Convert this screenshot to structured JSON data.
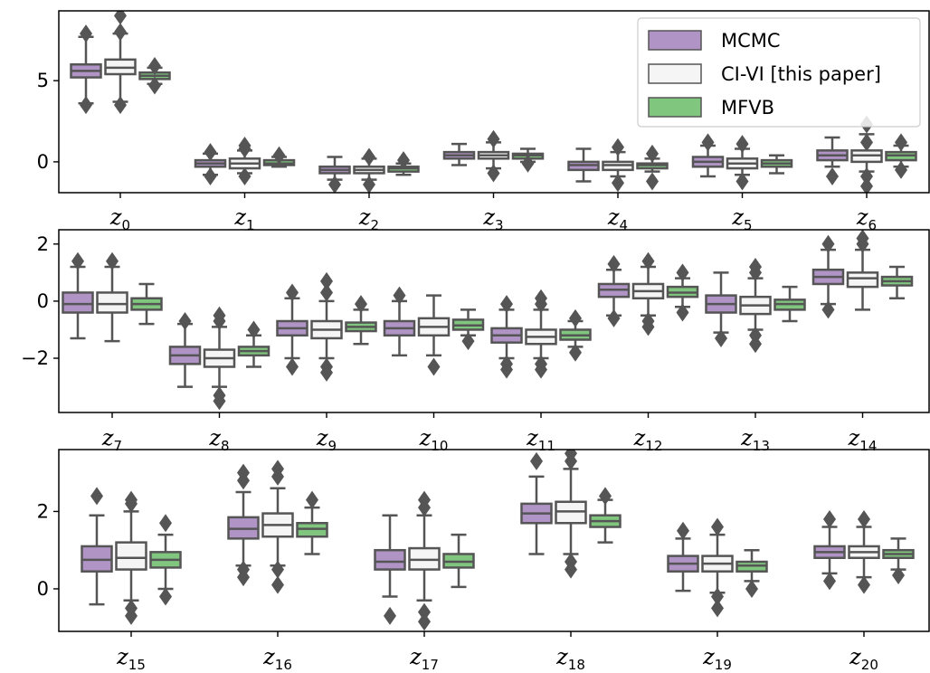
{
  "chart_data": {
    "type": "box",
    "legend": {
      "placement": "top-right",
      "entries": [
        {
          "name": "MCMC",
          "color": "#b194c6"
        },
        {
          "name": "CI-VI [this paper]",
          "color": "#f5f5f5"
        },
        {
          "name": "MFVB",
          "color": "#80c67f"
        }
      ]
    },
    "style": {
      "box_edge": "#555555",
      "outlier_marker": "diamond"
    },
    "panels": [
      {
        "ylim": [
          -1.9,
          9.3
        ],
        "yticks": [
          0,
          5
        ],
        "ytick_labels": [
          "0",
          "5"
        ],
        "categories": [
          {
            "base": "z",
            "sub": "0",
            "boxes": [
              {
                "lo": 3.6,
                "q1": 5.2,
                "med": 5.6,
                "q3": 6.0,
                "hi": 7.7,
                "outliers": [
                  3.5,
                  7.9
                ]
              },
              {
                "lo": 3.7,
                "q1": 5.4,
                "med": 5.8,
                "q3": 6.3,
                "hi": 7.9,
                "outliers": [
                  3.5,
                  8.0,
                  9.0
                ]
              },
              {
                "lo": 4.8,
                "q1": 5.1,
                "med": 5.3,
                "q3": 5.5,
                "hi": 5.8,
                "outliers": [
                  4.7,
                  5.9
                ]
              }
            ]
          },
          {
            "base": "z",
            "sub": "1",
            "boxes": [
              {
                "lo": -0.8,
                "q1": -0.3,
                "med": -0.1,
                "q3": 0.1,
                "hi": 0.5,
                "outliers": [
                  -0.9,
                  0.6
                ]
              },
              {
                "lo": -0.7,
                "q1": -0.4,
                "med": -0.1,
                "q3": 0.2,
                "hi": 0.7,
                "outliers": [
                  -0.9,
                  0.8,
                  1.0
                ]
              },
              {
                "lo": -0.3,
                "q1": -0.2,
                "med": -0.1,
                "q3": 0.1,
                "hi": 0.3,
                "outliers": [
                  0.4
                ]
              }
            ]
          },
          {
            "base": "z",
            "sub": "2",
            "boxes": [
              {
                "lo": -1.1,
                "q1": -0.7,
                "med": -0.5,
                "q3": -0.3,
                "hi": 0.3,
                "outliers": [
                  -1.4
                ]
              },
              {
                "lo": -1.1,
                "q1": -0.7,
                "med": -0.5,
                "q3": -0.3,
                "hi": 0.2,
                "outliers": [
                  -1.4,
                  0.3
                ]
              },
              {
                "lo": -0.8,
                "q1": -0.6,
                "med": -0.4,
                "q3": -0.3,
                "hi": -0.1,
                "outliers": [
                  0.1
                ]
              }
            ]
          },
          {
            "base": "z",
            "sub": "3",
            "boxes": [
              {
                "lo": -0.2,
                "q1": 0.2,
                "med": 0.4,
                "q3": 0.6,
                "hi": 1.1,
                "outliers": []
              },
              {
                "lo": -0.4,
                "q1": 0.2,
                "med": 0.4,
                "q3": 0.6,
                "hi": 1.2,
                "outliers": [
                  -0.7,
                  1.4
                ]
              },
              {
                "lo": 0.0,
                "q1": 0.2,
                "med": 0.4,
                "q3": 0.5,
                "hi": 0.8,
                "outliers": [
                  -0.1
                ]
              }
            ]
          },
          {
            "base": "z",
            "sub": "4",
            "boxes": [
              {
                "lo": -1.2,
                "q1": -0.5,
                "med": -0.2,
                "q3": 0.0,
                "hi": 0.8,
                "outliers": []
              },
              {
                "lo": -0.9,
                "q1": -0.5,
                "med": -0.2,
                "q3": 0.0,
                "hi": 0.6,
                "outliers": [
                  -1.3,
                  0.9
                ]
              },
              {
                "lo": -0.6,
                "q1": -0.4,
                "med": -0.2,
                "q3": -0.1,
                "hi": 0.2,
                "outliers": [
                  -1.2,
                  0.5
                ]
              }
            ]
          },
          {
            "base": "z",
            "sub": "5",
            "boxes": [
              {
                "lo": -0.9,
                "q1": -0.3,
                "med": 0.0,
                "q3": 0.3,
                "hi": 1.0,
                "outliers": [
                  1.2
                ]
              },
              {
                "lo": -0.8,
                "q1": -0.4,
                "med": -0.1,
                "q3": 0.2,
                "hi": 0.8,
                "outliers": [
                  -1.2,
                  1.1
                ]
              },
              {
                "lo": -0.7,
                "q1": -0.3,
                "med": -0.1,
                "q3": 0.1,
                "hi": 0.4,
                "outliers": []
              }
            ]
          },
          {
            "base": "z",
            "sub": "6",
            "boxes": [
              {
                "lo": -0.3,
                "q1": 0.1,
                "med": 0.4,
                "q3": 0.7,
                "hi": 1.5,
                "outliers": [
                  -0.9
                ]
              },
              {
                "lo": -0.6,
                "q1": 0.0,
                "med": 0.4,
                "q3": 0.7,
                "hi": 1.7,
                "outliers": [
                  -1.5,
                  -0.9,
                  1.2,
                  2.3
                ]
              },
              {
                "lo": -0.3,
                "q1": 0.1,
                "med": 0.4,
                "q3": 0.6,
                "hi": 1.0,
                "outliers": [
                  -0.5,
                  1.2
                ]
              }
            ]
          }
        ]
      },
      {
        "ylim": [
          -3.9,
          2.5
        ],
        "yticks": [
          -2,
          0,
          2
        ],
        "ytick_labels": [
          "−2",
          "0",
          "2"
        ],
        "categories": [
          {
            "base": "z",
            "sub": "7",
            "boxes": [
              {
                "lo": -1.3,
                "q1": -0.4,
                "med": -0.1,
                "q3": 0.3,
                "hi": 1.2,
                "outliers": [
                  1.4
                ]
              },
              {
                "lo": -1.4,
                "q1": -0.4,
                "med": -0.1,
                "q3": 0.3,
                "hi": 1.2,
                "outliers": [
                  1.4
                ]
              },
              {
                "lo": -0.8,
                "q1": -0.3,
                "med": -0.1,
                "q3": 0.1,
                "hi": 0.6,
                "outliers": []
              }
            ]
          },
          {
            "base": "z",
            "sub": "8",
            "boxes": [
              {
                "lo": -3.0,
                "q1": -2.2,
                "med": -1.9,
                "q3": -1.6,
                "hi": -0.8,
                "outliers": [
                  -0.7
                ]
              },
              {
                "lo": -3.0,
                "q1": -2.3,
                "med": -2.0,
                "q3": -1.7,
                "hi": -0.9,
                "outliers": [
                  -3.5,
                  -3.3,
                  -0.7,
                  -0.5
                ]
              },
              {
                "lo": -2.3,
                "q1": -1.9,
                "med": -1.75,
                "q3": -1.6,
                "hi": -1.2,
                "outliers": [
                  -1.0
                ]
              }
            ]
          },
          {
            "base": "z",
            "sub": "9",
            "boxes": [
              {
                "lo": -2.0,
                "q1": -1.2,
                "med": -0.95,
                "q3": -0.7,
                "hi": 0.1,
                "outliers": [
                  -2.3,
                  0.3
                ]
              },
              {
                "lo": -2.0,
                "q1": -1.3,
                "med": -1.0,
                "q3": -0.7,
                "hi": 0.0,
                "outliers": [
                  -2.5,
                  -2.3,
                  0.3,
                  0.7
                ]
              },
              {
                "lo": -1.5,
                "q1": -1.05,
                "med": -0.9,
                "q3": -0.75,
                "hi": -0.3,
                "outliers": [
                  -0.1
                ]
              }
            ]
          },
          {
            "base": "z",
            "sub": "10",
            "boxes": [
              {
                "lo": -1.9,
                "q1": -1.2,
                "med": -0.95,
                "q3": -0.7,
                "hi": 0.0,
                "outliers": [
                  0.2
                ]
              },
              {
                "lo": -1.9,
                "q1": -1.2,
                "med": -0.9,
                "q3": -0.6,
                "hi": 0.2,
                "outliers": [
                  -2.3
                ]
              },
              {
                "lo": -1.2,
                "q1": -1.0,
                "med": -0.85,
                "q3": -0.65,
                "hi": -0.3,
                "outliers": [
                  -1.4
                ]
              }
            ]
          },
          {
            "base": "z",
            "sub": "11",
            "boxes": [
              {
                "lo": -2.0,
                "q1": -1.45,
                "med": -1.2,
                "q3": -0.95,
                "hi": -0.3,
                "outliers": [
                  -2.4,
                  -2.2,
                  -0.1
                ]
              },
              {
                "lo": -2.0,
                "q1": -1.5,
                "med": -1.25,
                "q3": -1.0,
                "hi": -0.3,
                "outliers": [
                  -2.4,
                  -2.2,
                  -0.1,
                  0.1
                ]
              },
              {
                "lo": -1.6,
                "q1": -1.35,
                "med": -1.2,
                "q3": -1.0,
                "hi": -0.7,
                "outliers": [
                  -1.8,
                  -0.6
                ]
              }
            ]
          },
          {
            "base": "z",
            "sub": "12",
            "boxes": [
              {
                "lo": -0.5,
                "q1": 0.15,
                "med": 0.4,
                "q3": 0.6,
                "hi": 1.1,
                "outliers": [
                  -0.6,
                  1.3
                ]
              },
              {
                "lo": -0.5,
                "q1": 0.1,
                "med": 0.35,
                "q3": 0.6,
                "hi": 1.2,
                "outliers": [
                  -0.9,
                  -0.7,
                  1.4
                ]
              },
              {
                "lo": -0.2,
                "q1": 0.15,
                "med": 0.3,
                "q3": 0.5,
                "hi": 0.8,
                "outliers": [
                  -0.4,
                  1.0
                ]
              }
            ]
          },
          {
            "base": "z",
            "sub": "13",
            "boxes": [
              {
                "lo": -1.1,
                "q1": -0.4,
                "med": -0.1,
                "q3": 0.2,
                "hi": 1.0,
                "outliers": [
                  -1.3
                ]
              },
              {
                "lo": -1.0,
                "q1": -0.45,
                "med": -0.15,
                "q3": 0.15,
                "hi": 0.8,
                "outliers": [
                  -1.5,
                  -1.2,
                  1.0,
                  1.2
                ]
              },
              {
                "lo": -0.7,
                "q1": -0.3,
                "med": -0.1,
                "q3": 0.05,
                "hi": 0.5,
                "outliers": []
              }
            ]
          },
          {
            "base": "z",
            "sub": "14",
            "boxes": [
              {
                "lo": -0.1,
                "q1": 0.6,
                "med": 0.85,
                "q3": 1.1,
                "hi": 1.8,
                "outliers": [
                  -0.3,
                  2.0
                ]
              },
              {
                "lo": -0.3,
                "q1": 0.5,
                "med": 0.8,
                "q3": 1.0,
                "hi": 1.8,
                "outliers": [
                  2.0,
                  2.2
                ]
              },
              {
                "lo": 0.1,
                "q1": 0.55,
                "med": 0.7,
                "q3": 0.85,
                "hi": 1.2,
                "outliers": []
              }
            ]
          }
        ]
      },
      {
        "ylim": [
          -1.1,
          3.6
        ],
        "yticks": [
          0,
          2
        ],
        "ytick_labels": [
          "0",
          "2"
        ],
        "categories": [
          {
            "base": "z",
            "sub": "15",
            "boxes": [
              {
                "lo": -0.4,
                "q1": 0.45,
                "med": 0.75,
                "q3": 1.1,
                "hi": 1.9,
                "outliers": [
                  2.4
                ]
              },
              {
                "lo": -0.3,
                "q1": 0.5,
                "med": 0.8,
                "q3": 1.2,
                "hi": 2.0,
                "outliers": [
                  -0.7,
                  -0.5,
                  2.2,
                  2.3
                ]
              },
              {
                "lo": 0.0,
                "q1": 0.55,
                "med": 0.75,
                "q3": 0.95,
                "hi": 1.4,
                "outliers": [
                  -0.2,
                  1.7
                ]
              }
            ]
          },
          {
            "base": "z",
            "sub": "16",
            "boxes": [
              {
                "lo": 0.6,
                "q1": 1.3,
                "med": 1.55,
                "q3": 1.85,
                "hi": 2.5,
                "outliers": [
                  0.3,
                  0.5,
                  2.8,
                  3.0
                ]
              },
              {
                "lo": 0.6,
                "q1": 1.35,
                "med": 1.65,
                "q3": 1.95,
                "hi": 2.6,
                "outliers": [
                  0.1,
                  0.5,
                  2.9,
                  3.1
                ]
              },
              {
                "lo": 0.9,
                "q1": 1.35,
                "med": 1.55,
                "q3": 1.7,
                "hi": 2.1,
                "outliers": [
                  2.3
                ]
              }
            ]
          },
          {
            "base": "z",
            "sub": "17",
            "boxes": [
              {
                "lo": -0.2,
                "q1": 0.5,
                "med": 0.7,
                "q3": 1.0,
                "hi": 1.9,
                "outliers": [
                  -0.7
                ]
              },
              {
                "lo": -0.3,
                "q1": 0.5,
                "med": 0.75,
                "q3": 1.05,
                "hi": 1.9,
                "outliers": [
                  -0.85,
                  -0.6,
                  2.1,
                  2.3
                ]
              },
              {
                "lo": 0.05,
                "q1": 0.55,
                "med": 0.7,
                "q3": 0.9,
                "hi": 1.4,
                "outliers": []
              }
            ]
          },
          {
            "base": "z",
            "sub": "18",
            "boxes": [
              {
                "lo": 0.9,
                "q1": 1.7,
                "med": 1.95,
                "q3": 2.2,
                "hi": 2.9,
                "outliers": [
                  3.3
                ]
              },
              {
                "lo": 0.9,
                "q1": 1.7,
                "med": 2.0,
                "q3": 2.25,
                "hi": 3.1,
                "outliers": [
                  0.5,
                  0.7,
                  3.3,
                  3.5
                ]
              },
              {
                "lo": 1.2,
                "q1": 1.6,
                "med": 1.75,
                "q3": 1.9,
                "hi": 2.3,
                "outliers": [
                  2.4
                ]
              }
            ]
          },
          {
            "base": "z",
            "sub": "19",
            "boxes": [
              {
                "lo": -0.05,
                "q1": 0.45,
                "med": 0.65,
                "q3": 0.85,
                "hi": 1.3,
                "outliers": [
                  1.5
                ]
              },
              {
                "lo": -0.1,
                "q1": 0.45,
                "med": 0.65,
                "q3": 0.85,
                "hi": 1.4,
                "outliers": [
                  -0.5,
                  -0.2,
                  1.6
                ]
              },
              {
                "lo": 0.2,
                "q1": 0.45,
                "med": 0.6,
                "q3": 0.7,
                "hi": 1.0,
                "outliers": [
                  0.0
                ]
              }
            ]
          },
          {
            "base": "z",
            "sub": "20",
            "boxes": [
              {
                "lo": 0.4,
                "q1": 0.8,
                "med": 0.95,
                "q3": 1.1,
                "hi": 1.6,
                "outliers": [
                  0.2,
                  1.8
                ]
              },
              {
                "lo": 0.3,
                "q1": 0.8,
                "med": 0.95,
                "q3": 1.1,
                "hi": 1.6,
                "outliers": [
                  0.1,
                  1.8
                ]
              },
              {
                "lo": 0.5,
                "q1": 0.8,
                "med": 0.9,
                "q3": 1.0,
                "hi": 1.3,
                "outliers": [
                  0.35
                ]
              }
            ]
          }
        ]
      }
    ]
  }
}
